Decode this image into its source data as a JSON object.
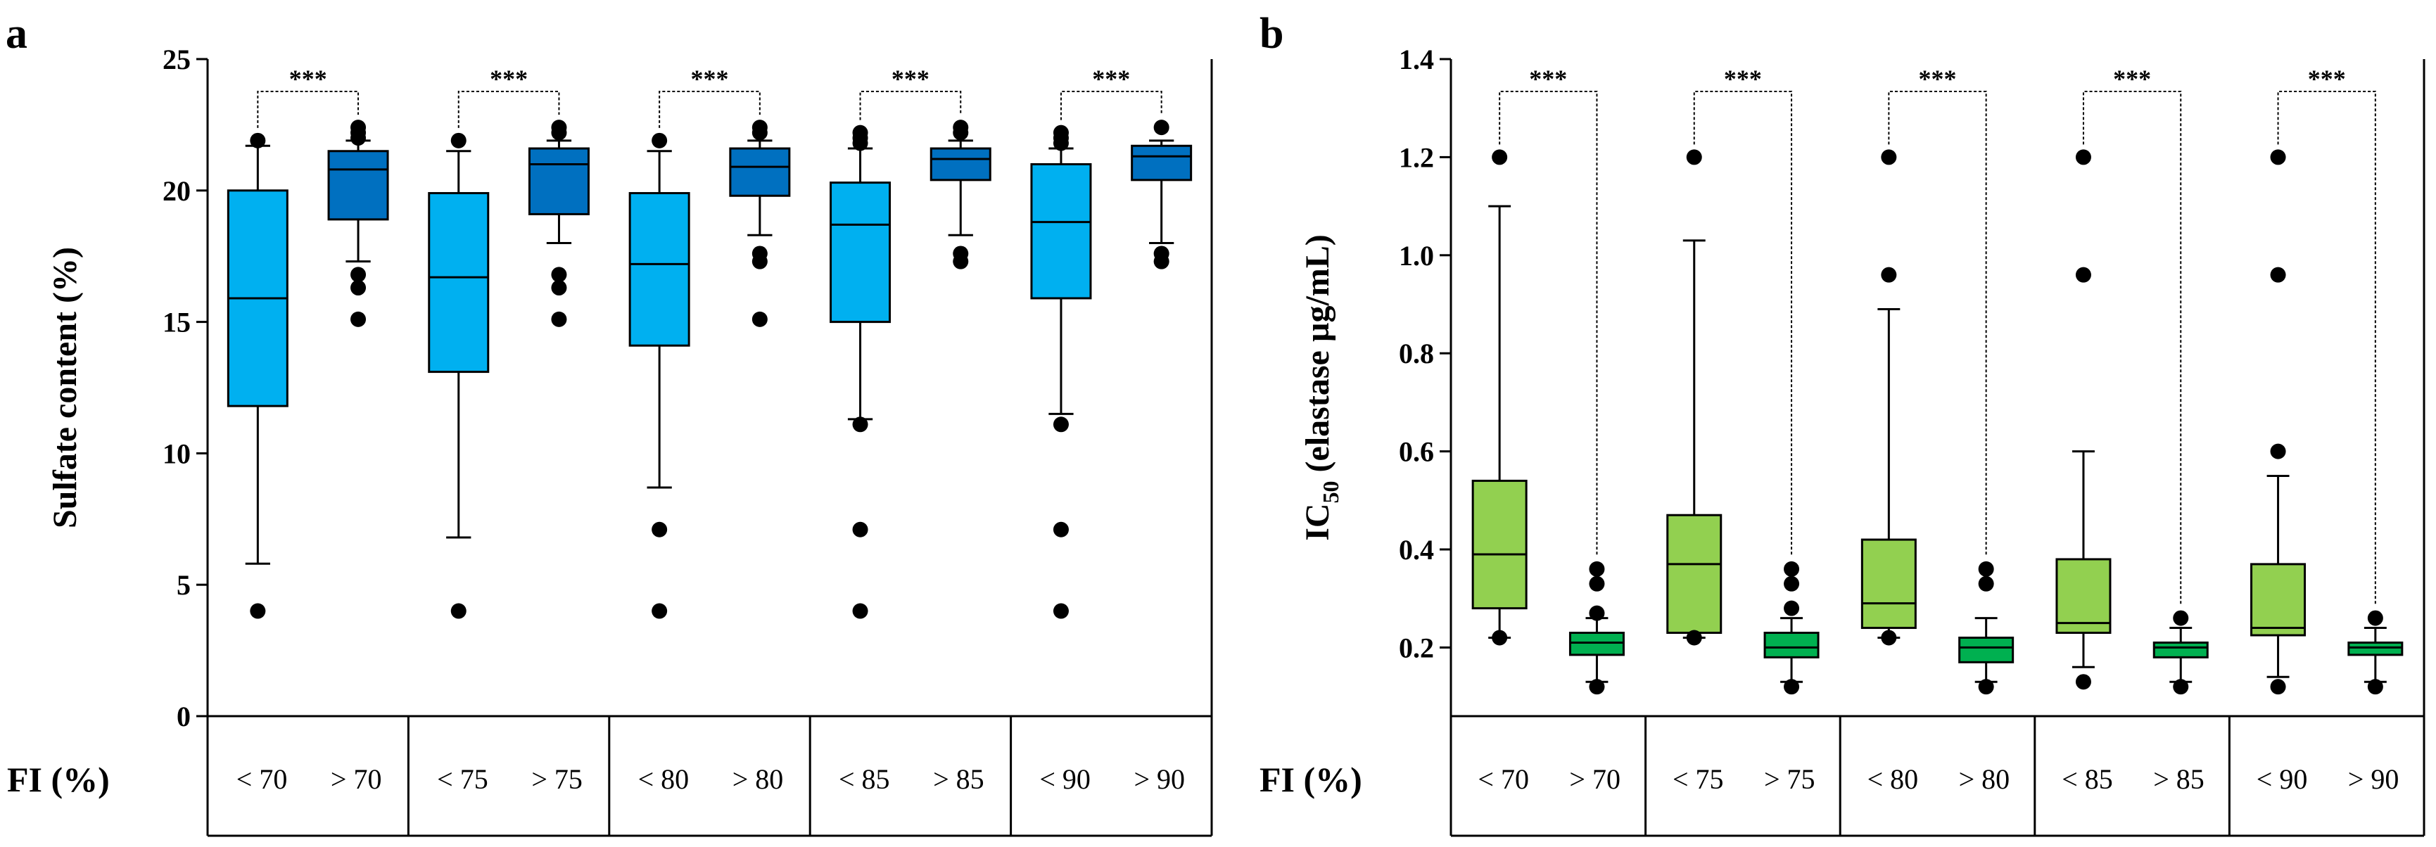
{
  "chart_data": [
    {
      "type": "box",
      "panel_label": "a",
      "ylabel": "Sulfate content (%)",
      "ylim": [
        0,
        25
      ],
      "yticks": [
        "0",
        "5",
        "10",
        "15",
        "20",
        "25"
      ],
      "x_title": "FI (%)",
      "colors": {
        "low": "#00b0f0",
        "high": "#0070c0"
      },
      "groups": [
        {
          "labels": [
            "< 70",
            "> 70"
          ],
          "significance": "***",
          "boxes": [
            {
              "q1": 11.8,
              "median": 15.9,
              "q3": 20.0,
              "whisker_low": 5.8,
              "whisker_high": 21.7,
              "outliers": [
                4.0,
                21.9
              ]
            },
            {
              "q1": 18.9,
              "median": 20.8,
              "q3": 21.5,
              "whisker_low": 17.3,
              "whisker_high": 21.9,
              "outliers": [
                15.1,
                16.3,
                16.8,
                22.0,
                22.2,
                22.4
              ]
            }
          ]
        },
        {
          "labels": [
            "< 75",
            "> 75"
          ],
          "significance": "***",
          "boxes": [
            {
              "q1": 13.1,
              "median": 16.7,
              "q3": 19.9,
              "whisker_low": 6.8,
              "whisker_high": 21.5,
              "outliers": [
                4.0,
                21.9
              ]
            },
            {
              "q1": 19.1,
              "median": 21.0,
              "q3": 21.6,
              "whisker_low": 18.0,
              "whisker_high": 21.9,
              "outliers": [
                15.1,
                16.3,
                16.8,
                22.2,
                22.4
              ]
            }
          ]
        },
        {
          "labels": [
            "< 80",
            "> 80"
          ],
          "significance": "***",
          "boxes": [
            {
              "q1": 14.1,
              "median": 17.2,
              "q3": 19.9,
              "whisker_low": 8.7,
              "whisker_high": 21.5,
              "outliers": [
                4.0,
                7.1,
                21.9
              ]
            },
            {
              "q1": 19.8,
              "median": 20.9,
              "q3": 21.6,
              "whisker_low": 18.3,
              "whisker_high": 21.9,
              "outliers": [
                15.1,
                17.3,
                17.6,
                22.2,
                22.4
              ]
            }
          ]
        },
        {
          "labels": [
            "< 85",
            "> 85"
          ],
          "significance": "***",
          "boxes": [
            {
              "q1": 15.0,
              "median": 18.7,
              "q3": 20.3,
              "whisker_low": 11.3,
              "whisker_high": 21.6,
              "outliers": [
                4.0,
                7.1,
                11.1,
                21.8,
                22.0,
                22.2
              ]
            },
            {
              "q1": 20.4,
              "median": 21.2,
              "q3": 21.6,
              "whisker_low": 18.3,
              "whisker_high": 21.9,
              "outliers": [
                17.3,
                17.6,
                22.2,
                22.4
              ]
            }
          ]
        },
        {
          "labels": [
            "< 90",
            "> 90"
          ],
          "significance": "***",
          "boxes": [
            {
              "q1": 15.9,
              "median": 18.8,
              "q3": 21.0,
              "whisker_low": 11.5,
              "whisker_high": 21.6,
              "outliers": [
                4.0,
                7.1,
                11.1,
                21.8,
                22.0,
                22.2
              ]
            },
            {
              "q1": 20.4,
              "median": 21.3,
              "q3": 21.7,
              "whisker_low": 18.0,
              "whisker_high": 21.9,
              "outliers": [
                17.3,
                17.6,
                22.4
              ]
            }
          ]
        }
      ]
    },
    {
      "type": "box",
      "panel_label": "b",
      "ylabel_main": "IC",
      "ylabel_sub": "50",
      "ylabel_rest": " (elastase µg/mL)",
      "ylim": [
        0.06,
        1.4
      ],
      "yticks": [
        "0.2",
        "0.4",
        "0.6",
        "0.8",
        "1.0",
        "1.2",
        "1.4"
      ],
      "x_title": "FI (%)",
      "colors": {
        "low": "#92d050",
        "high": "#00b050"
      },
      "groups": [
        {
          "labels": [
            "< 70",
            "> 70"
          ],
          "significance": "***",
          "boxes": [
            {
              "q1": 0.28,
              "median": 0.39,
              "q3": 0.54,
              "whisker_low": 0.22,
              "whisker_high": 1.1,
              "outliers": [
                0.22,
                1.2
              ]
            },
            {
              "q1": 0.185,
              "median": 0.21,
              "q3": 0.23,
              "whisker_low": 0.13,
              "whisker_high": 0.26,
              "outliers": [
                0.12,
                0.27,
                0.33,
                0.36
              ]
            }
          ]
        },
        {
          "labels": [
            "< 75",
            "> 75"
          ],
          "significance": "***",
          "boxes": [
            {
              "q1": 0.23,
              "median": 0.37,
              "q3": 0.47,
              "whisker_low": 0.22,
              "whisker_high": 1.03,
              "outliers": [
                0.22,
                1.2
              ]
            },
            {
              "q1": 0.18,
              "median": 0.2,
              "q3": 0.23,
              "whisker_low": 0.13,
              "whisker_high": 0.26,
              "outliers": [
                0.12,
                0.28,
                0.33,
                0.36
              ]
            }
          ]
        },
        {
          "labels": [
            "< 80",
            "> 80"
          ],
          "significance": "***",
          "boxes": [
            {
              "q1": 0.24,
              "median": 0.29,
              "q3": 0.42,
              "whisker_low": 0.22,
              "whisker_high": 0.89,
              "outliers": [
                0.22,
                0.96,
                1.2
              ]
            },
            {
              "q1": 0.17,
              "median": 0.2,
              "q3": 0.22,
              "whisker_low": 0.13,
              "whisker_high": 0.26,
              "outliers": [
                0.12,
                0.33,
                0.36
              ]
            }
          ]
        },
        {
          "labels": [
            "< 85",
            "> 85"
          ],
          "significance": "***",
          "boxes": [
            {
              "q1": 0.23,
              "median": 0.25,
              "q3": 0.38,
              "whisker_low": 0.16,
              "whisker_high": 0.6,
              "outliers": [
                0.13,
                0.96,
                1.2
              ]
            },
            {
              "q1": 0.18,
              "median": 0.2,
              "q3": 0.21,
              "whisker_low": 0.13,
              "whisker_high": 0.24,
              "outliers": [
                0.12,
                0.26
              ]
            }
          ]
        },
        {
          "labels": [
            "< 90",
            "> 90"
          ],
          "significance": "***",
          "boxes": [
            {
              "q1": 0.225,
              "median": 0.24,
              "q3": 0.37,
              "whisker_low": 0.14,
              "whisker_high": 0.55,
              "outliers": [
                0.12,
                0.6,
                0.96,
                1.2
              ]
            },
            {
              "q1": 0.185,
              "median": 0.2,
              "q3": 0.21,
              "whisker_low": 0.13,
              "whisker_high": 0.24,
              "outliers": [
                0.12,
                0.26
              ]
            }
          ]
        }
      ]
    }
  ]
}
